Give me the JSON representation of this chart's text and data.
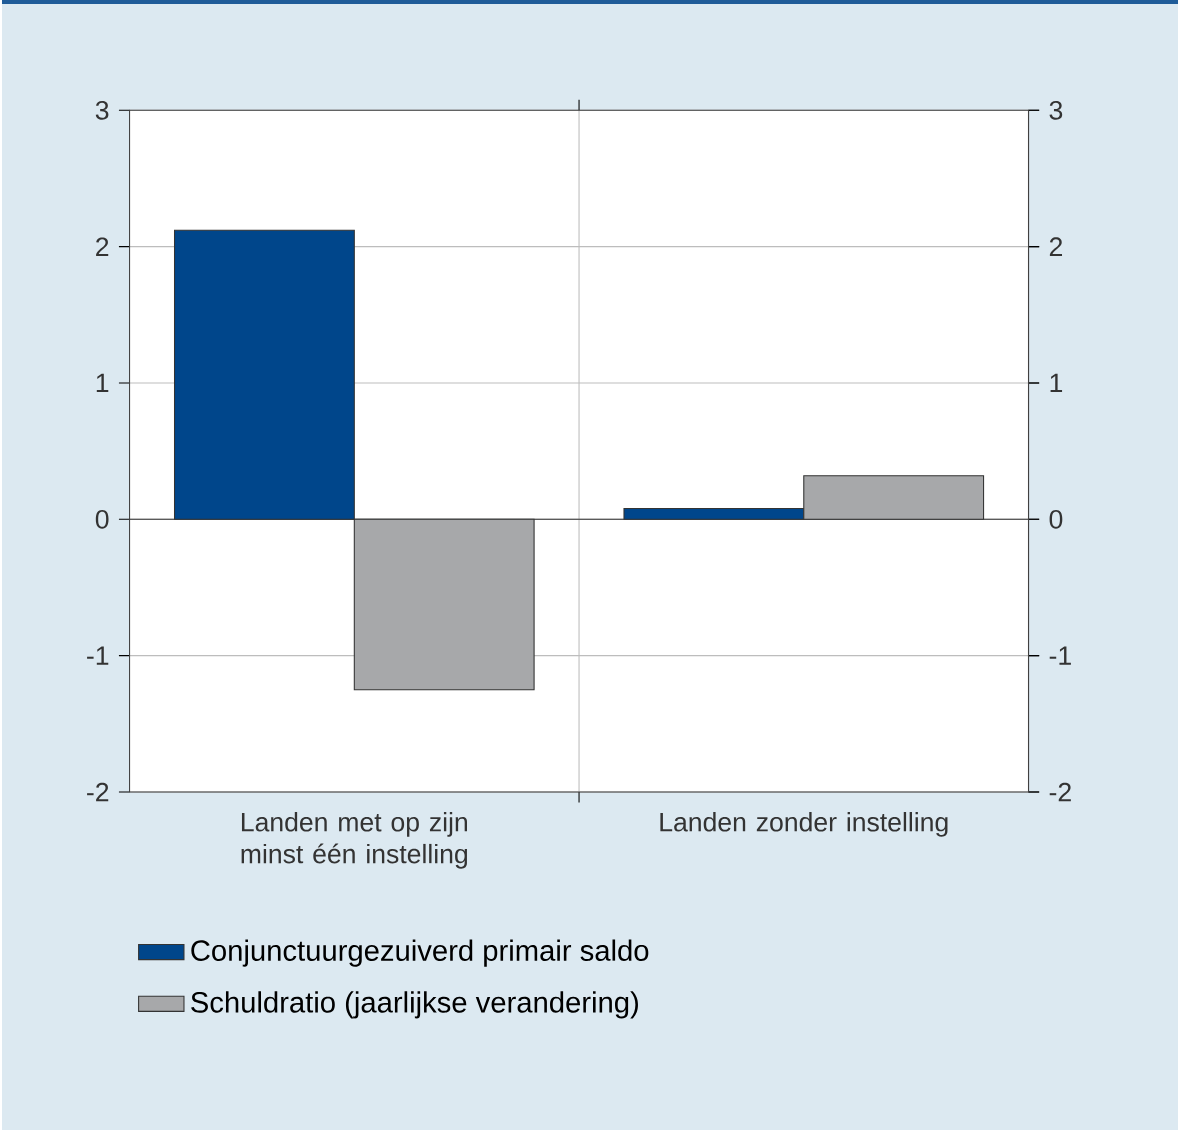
{
  "chart_data": {
    "type": "bar",
    "categories": [
      "Landen met op zijn minst één instelling",
      "Landen zonder instelling"
    ],
    "series": [
      {
        "name": "Conjunctuurgezuiverd primair saldo",
        "color": "#00468b",
        "values": [
          2.12,
          0.08
        ]
      },
      {
        "name": "Schuldratio (jaarlijkse verandering)",
        "color": "#a7a8aa",
        "values": [
          -1.25,
          0.32
        ]
      }
    ],
    "ylim": [
      -2,
      3
    ],
    "yticks": [
      -2,
      -1,
      0,
      1,
      2,
      3
    ],
    "y2lim": [
      -2,
      3
    ],
    "y2ticks": [
      -2,
      -1,
      0,
      1,
      2,
      3
    ],
    "grid": "y",
    "legend": "bottom"
  }
}
